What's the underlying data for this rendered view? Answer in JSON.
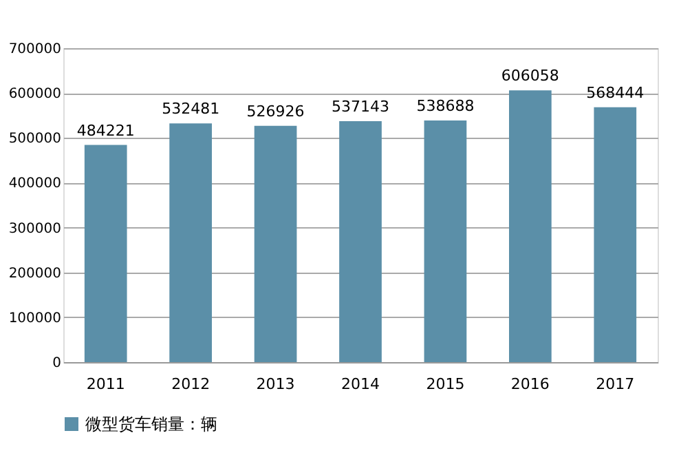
{
  "chart_data": {
    "type": "bar",
    "categories": [
      "2011",
      "2012",
      "2013",
      "2014",
      "2015",
      "2016",
      "2017"
    ],
    "series": [
      {
        "name": "微型货车销量：辆",
        "color": "#5b8fa8",
        "values": [
          484221,
          532481,
          526926,
          537143,
          538688,
          606058,
          568444
        ]
      }
    ],
    "ylim": [
      0,
      700000
    ],
    "yticks": [
      0,
      100000,
      200000,
      300000,
      400000,
      500000,
      600000,
      700000
    ],
    "grid": "y",
    "legend": "bottom",
    "data_labels": true
  }
}
